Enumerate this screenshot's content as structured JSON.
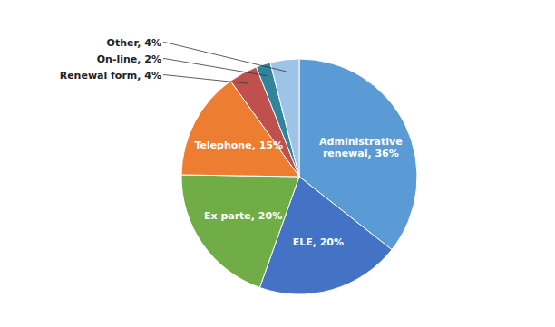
{
  "chart_data": {
    "type": "pie",
    "categories": [
      "Administrative\nrenewal, 36%",
      "ELE, 20%",
      "Ex parte, 20%",
      "Telephone, 15%",
      "Renewal form, 4%",
      "On-line, 2%",
      "Other, 4%"
    ],
    "values": [
      36,
      20,
      20,
      15,
      4,
      2,
      4
    ],
    "colors": [
      "#5b9bd5",
      "#4472c4",
      "#70ad47",
      "#ed7d31",
      "#c0504d",
      "#31849b",
      "#9dc3e6"
    ]
  }
}
